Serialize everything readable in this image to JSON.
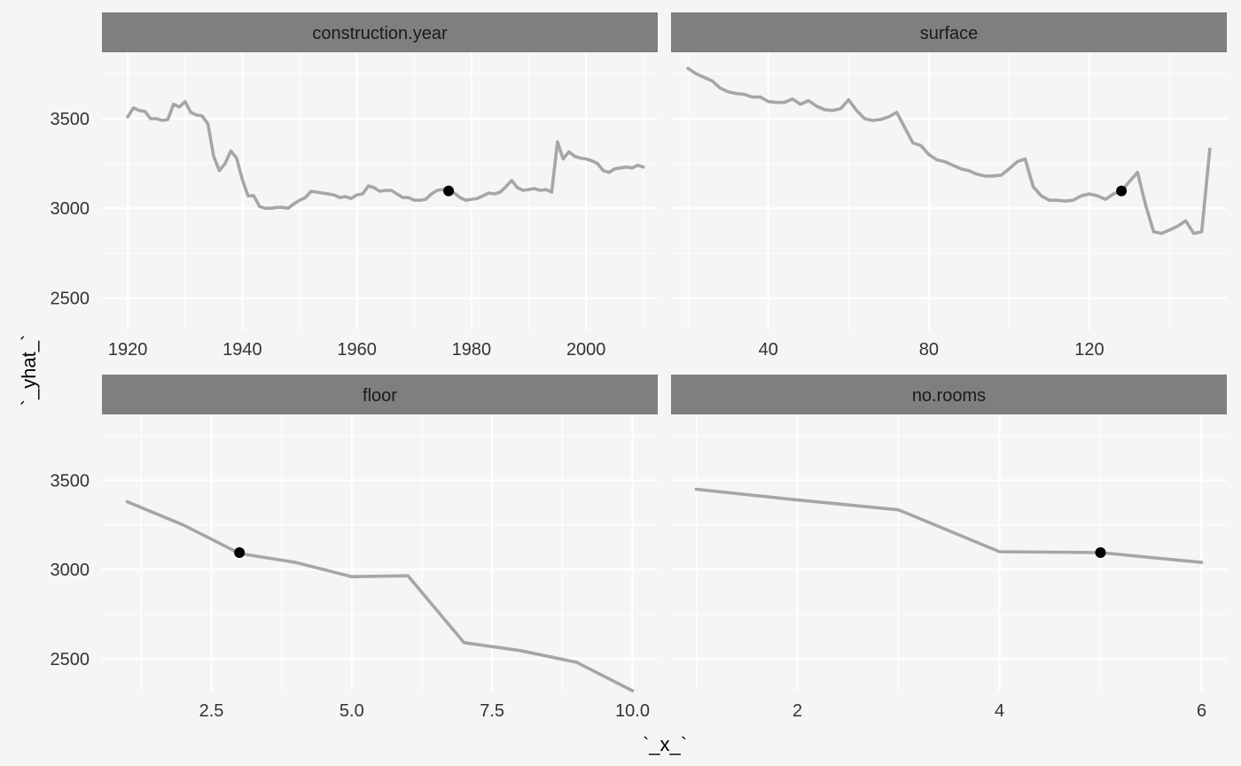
{
  "chart_data": {
    "type": "line",
    "xlabel": "`_x_`",
    "ylabel": "`_yhat_`",
    "y_ticks": [
      2500,
      3000,
      3500
    ],
    "ylim": [
      2320,
      3870
    ],
    "line_color": "#a6a6a6",
    "point_color": "#000000",
    "strip_color": "#7f7f7f",
    "panel_background": "#f5f5f5",
    "grid_color": "#ffffff",
    "panels": [
      {
        "title": "construction.year",
        "xlim": [
          1915.5,
          2012.5
        ],
        "x_ticks": [
          1920,
          1940,
          1960,
          1980,
          2000
        ],
        "x_tick_labels": [
          "1920",
          "1940",
          "1960",
          "1980",
          "2000"
        ],
        "x": [
          1920,
          1921,
          1922,
          1923,
          1924,
          1925,
          1926,
          1927,
          1928,
          1929,
          1930,
          1931,
          1932,
          1933,
          1934,
          1935,
          1936,
          1937,
          1938,
          1939,
          1940,
          1941,
          1942,
          1943,
          1944,
          1945,
          1946,
          1947,
          1948,
          1949,
          1950,
          1951,
          1952,
          1953,
          1954,
          1955,
          1956,
          1957,
          1958,
          1959,
          1960,
          1961,
          1962,
          1963,
          1964,
          1965,
          1966,
          1967,
          1968,
          1969,
          1970,
          1971,
          1972,
          1973,
          1974,
          1975,
          1976,
          1977,
          1978,
          1979,
          1980,
          1981,
          1982,
          1983,
          1984,
          1985,
          1986,
          1987,
          1988,
          1989,
          1990,
          1991,
          1992,
          1993,
          1994,
          1995,
          1996,
          1997,
          1998,
          1999,
          2000,
          2001,
          2002,
          2003,
          2004,
          2005,
          2006,
          2007,
          2008,
          2009,
          2010
        ],
        "y": [
          3510,
          3560,
          3545,
          3540,
          3500,
          3500,
          3490,
          3495,
          3580,
          3565,
          3595,
          3535,
          3520,
          3515,
          3470,
          3290,
          3210,
          3250,
          3320,
          3280,
          3160,
          3070,
          3070,
          3010,
          3000,
          3000,
          3005,
          3005,
          3000,
          3025,
          3045,
          3060,
          3095,
          3090,
          3085,
          3080,
          3075,
          3060,
          3065,
          3055,
          3075,
          3080,
          3125,
          3115,
          3095,
          3100,
          3100,
          3080,
          3060,
          3060,
          3045,
          3045,
          3050,
          3080,
          3100,
          3105,
          3100,
          3085,
          3060,
          3045,
          3050,
          3055,
          3070,
          3085,
          3080,
          3090,
          3120,
          3155,
          3115,
          3100,
          3105,
          3110,
          3100,
          3105,
          3090,
          3370,
          3275,
          3315,
          3290,
          3280,
          3275,
          3265,
          3250,
          3210,
          3200,
          3220,
          3225,
          3230,
          3225,
          3240,
          3230
        ],
        "point": {
          "x": 1976,
          "y": 3097
        }
      },
      {
        "title": "surface",
        "xlim": [
          15.75,
          154.25
        ],
        "x_ticks": [
          40,
          80,
          120
        ],
        "x_tick_labels": [
          "40",
          "80",
          "120"
        ],
        "x": [
          20,
          22,
          24,
          26,
          28,
          30,
          32,
          34,
          36,
          38,
          40,
          42,
          44,
          46,
          48,
          50,
          52,
          54,
          56,
          58,
          60,
          62,
          64,
          66,
          68,
          70,
          72,
          74,
          76,
          78,
          80,
          82,
          84,
          86,
          88,
          90,
          92,
          94,
          96,
          98,
          100,
          102,
          104,
          106,
          108,
          110,
          112,
          114,
          116,
          118,
          120,
          122,
          124,
          126,
          128,
          130,
          132,
          134,
          136,
          138,
          140,
          142,
          144,
          146,
          148,
          150
        ],
        "y": [
          3780,
          3750,
          3730,
          3710,
          3670,
          3650,
          3640,
          3635,
          3620,
          3620,
          3595,
          3590,
          3590,
          3610,
          3580,
          3600,
          3570,
          3550,
          3545,
          3555,
          3605,
          3545,
          3500,
          3490,
          3495,
          3510,
          3535,
          3450,
          3365,
          3350,
          3300,
          3270,
          3260,
          3240,
          3220,
          3210,
          3190,
          3180,
          3180,
          3185,
          3220,
          3260,
          3275,
          3120,
          3070,
          3045,
          3045,
          3040,
          3045,
          3070,
          3080,
          3070,
          3050,
          3080,
          3095,
          3150,
          3200,
          3020,
          2870,
          2860,
          2880,
          2900,
          2930,
          2860,
          2870,
          3330
        ],
        "point": {
          "x": 128,
          "y": 3097
        }
      },
      {
        "title": "floor",
        "xlim": [
          0.55,
          10.45
        ],
        "x_ticks": [
          2.5,
          5.0,
          7.5,
          10.0
        ],
        "x_tick_labels": [
          "2.5",
          "5.0",
          "7.5",
          "10.0"
        ],
        "x": [
          1,
          2,
          3,
          4,
          5,
          6,
          7,
          8,
          9,
          10
        ],
        "y": [
          3380,
          3250,
          3090,
          3040,
          2960,
          2965,
          2590,
          2545,
          2480,
          2320
        ],
        "point": {
          "x": 3,
          "y": 3095
        }
      },
      {
        "title": "no.rooms",
        "xlim": [
          0.75,
          6.25
        ],
        "x_ticks": [
          2,
          4,
          6
        ],
        "x_tick_labels": [
          "2",
          "4",
          "6"
        ],
        "x": [
          1,
          2,
          3,
          4,
          5,
          6
        ],
        "y": [
          3450,
          3390,
          3335,
          3100,
          3095,
          3040
        ],
        "point": {
          "x": 5,
          "y": 3095
        }
      }
    ]
  }
}
